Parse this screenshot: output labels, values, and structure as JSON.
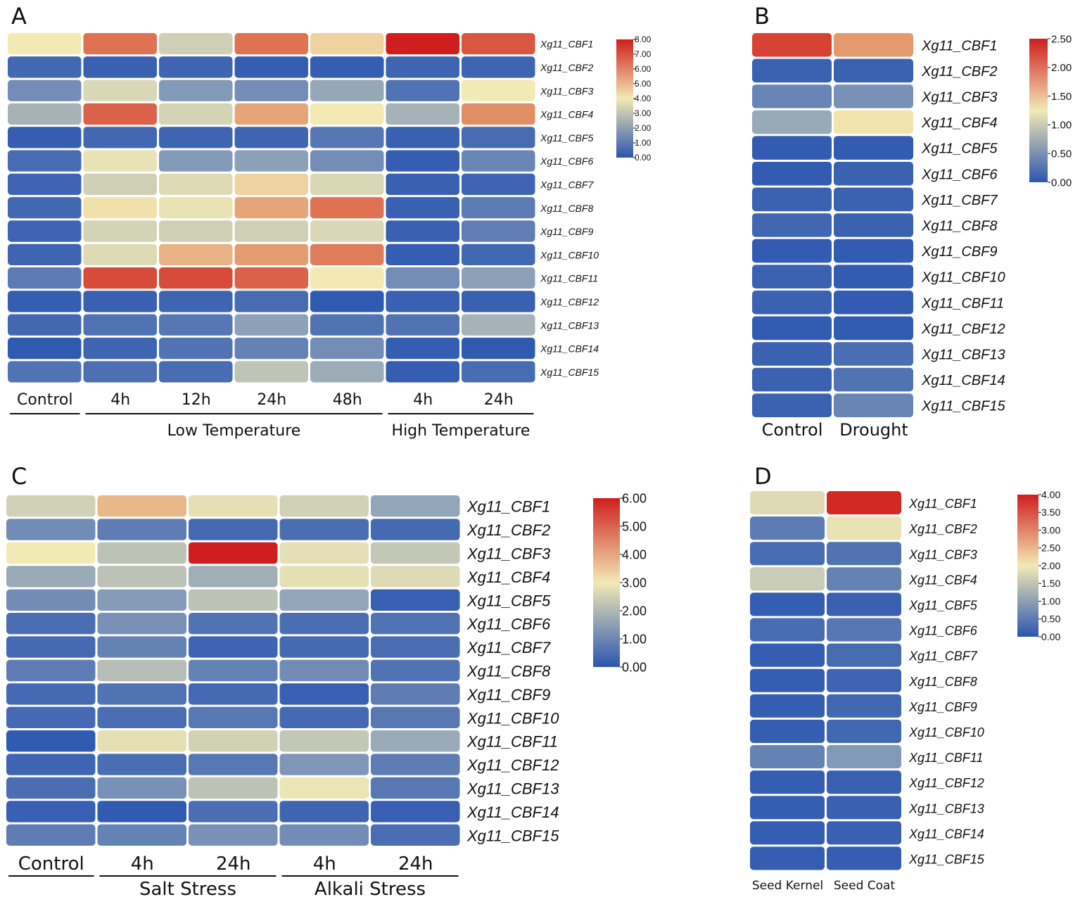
{
  "chart_data": [
    {
      "type": "heatmap",
      "panel": "A",
      "columns": [
        "Control",
        "4h",
        "12h",
        "24h",
        "48h",
        "4h",
        "24h"
      ],
      "groups": [
        {
          "label": "Low Temperature",
          "columns": [
            1,
            2,
            3,
            4
          ]
        },
        {
          "label": "High Temperature",
          "columns": [
            5,
            6
          ]
        }
      ],
      "rows": [
        "Xg11_CBF1",
        "Xg11_CBF2",
        "Xg11_CBF3",
        "Xg11_CBF4",
        "Xg11_CBF5",
        "Xg11_CBF6",
        "Xg11_CBF7",
        "Xg11_CBF8",
        "Xg11_CBF9",
        "Xg11_CBF10",
        "Xg11_CBF11",
        "Xg11_CBF12",
        "Xg11_CBF13",
        "Xg11_CBF14",
        "Xg11_CBF15"
      ],
      "values": [
        [
          4.0,
          6.5,
          3.3,
          6.5,
          4.5,
          8.0,
          7.0
        ],
        [
          0.5,
          0.3,
          0.4,
          0.2,
          0.2,
          0.4,
          0.4
        ],
        [
          1.5,
          3.5,
          1.8,
          1.5,
          2.2,
          0.8,
          4.0
        ],
        [
          2.5,
          6.8,
          3.4,
          5.5,
          4.0,
          2.5,
          6.0
        ],
        [
          0.2,
          0.5,
          0.4,
          0.4,
          0.9,
          0.3,
          0.6
        ],
        [
          0.6,
          3.8,
          1.8,
          2.0,
          1.5,
          0.2,
          1.3
        ],
        [
          0.4,
          3.3,
          3.6,
          4.5,
          3.5,
          0.3,
          0.4
        ],
        [
          0.5,
          4.2,
          3.8,
          5.5,
          6.5,
          0.3,
          1.0
        ],
        [
          0.4,
          3.4,
          3.3,
          3.3,
          3.5,
          0.3,
          1.1
        ],
        [
          0.4,
          3.6,
          5.2,
          5.7,
          6.3,
          0.2,
          0.5
        ],
        [
          1.0,
          7.2,
          7.2,
          6.8,
          4.0,
          1.5,
          2.0
        ],
        [
          0.2,
          0.3,
          0.4,
          0.6,
          0.1,
          0.3,
          0.3
        ],
        [
          0.5,
          0.8,
          0.9,
          2.0,
          0.8,
          0.8,
          2.5
        ],
        [
          0.1,
          0.4,
          0.8,
          1.2,
          1.5,
          0.2,
          0.1
        ],
        [
          0.8,
          0.7,
          0.6,
          3.0,
          2.3,
          0.2,
          0.6
        ]
      ],
      "colorbar": {
        "min": 0,
        "max": 8,
        "ticks": [
          "8.00",
          "7.00",
          "6.00",
          "5.00",
          "4.00",
          "3.00",
          "2.00",
          "1.00",
          "0.00"
        ]
      }
    },
    {
      "type": "heatmap",
      "panel": "B",
      "columns": [
        "Control",
        "Drought"
      ],
      "groups": [],
      "rows": [
        "Xg11_CBF1",
        "Xg11_CBF2",
        "Xg11_CBF3",
        "Xg11_CBF4",
        "Xg11_CBF5",
        "Xg11_CBF6",
        "Xg11_CBF7",
        "Xg11_CBF8",
        "Xg11_CBF9",
        "Xg11_CBF10",
        "Xg11_CBF11",
        "Xg11_CBF12",
        "Xg11_CBF13",
        "Xg11_CBF14",
        "Xg11_CBF15"
      ],
      "values": [
        [
          2.3,
          1.8
        ],
        [
          0.1,
          0.1
        ],
        [
          0.4,
          0.5
        ],
        [
          0.7,
          1.3
        ],
        [
          0.05,
          0.05
        ],
        [
          0.05,
          0.1
        ],
        [
          0.1,
          0.1
        ],
        [
          0.15,
          0.1
        ],
        [
          0.05,
          0.05
        ],
        [
          0.1,
          0.05
        ],
        [
          0.1,
          0.05
        ],
        [
          0.05,
          0.05
        ],
        [
          0.1,
          0.2
        ],
        [
          0.1,
          0.25
        ],
        [
          0.1,
          0.4
        ]
      ],
      "colorbar": {
        "min": 0,
        "max": 2.5,
        "ticks": [
          "2.50",
          "2.00",
          "1.50",
          "1.00",
          "0.50",
          "0.00"
        ]
      }
    },
    {
      "type": "heatmap",
      "panel": "C",
      "columns": [
        "Control",
        "4h",
        "24h",
        "4h",
        "24h"
      ],
      "groups": [
        {
          "label": "Salt Stress",
          "columns": [
            1,
            2
          ]
        },
        {
          "label": "Alkali Stress",
          "columns": [
            3,
            4
          ]
        }
      ],
      "rows": [
        "Xg11_CBF1",
        "Xg11_CBF2",
        "Xg11_CBF3",
        "Xg11_CBF4",
        "Xg11_CBF5",
        "Xg11_CBF6",
        "Xg11_CBF7",
        "Xg11_CBF8",
        "Xg11_CBF9",
        "Xg11_CBF10",
        "Xg11_CBF11",
        "Xg11_CBF12",
        "Xg11_CBF13",
        "Xg11_CBF14",
        "Xg11_CBF15"
      ],
      "values": [
        [
          2.5,
          3.8,
          2.8,
          2.5,
          1.6
        ],
        [
          1.1,
          0.8,
          0.4,
          0.5,
          0.4
        ],
        [
          3.0,
          2.2,
          6.0,
          2.8,
          2.3
        ],
        [
          1.7,
          2.2,
          1.8,
          2.8,
          2.7
        ],
        [
          1.1,
          1.4,
          2.2,
          1.6,
          0.2
        ],
        [
          0.5,
          1.2,
          0.6,
          0.5,
          0.6
        ],
        [
          0.4,
          0.9,
          0.3,
          0.4,
          0.5
        ],
        [
          0.8,
          2.1,
          0.9,
          1.1,
          0.6
        ],
        [
          0.4,
          0.6,
          0.4,
          0.2,
          0.8
        ],
        [
          0.4,
          0.5,
          0.7,
          0.4,
          0.7
        ],
        [
          0.1,
          2.8,
          2.5,
          2.3,
          1.7
        ],
        [
          0.3,
          0.5,
          0.7,
          1.3,
          0.8
        ],
        [
          0.5,
          1.2,
          2.2,
          2.9,
          0.7
        ],
        [
          0.2,
          0.1,
          0.5,
          0.3,
          0.2
        ],
        [
          0.8,
          0.9,
          1.2,
          1.1,
          0.5
        ]
      ],
      "colorbar": {
        "min": 0,
        "max": 6,
        "ticks": [
          "6.00",
          "5.00",
          "4.00",
          "3.00",
          "2.00",
          "1.00",
          "0.00"
        ]
      }
    },
    {
      "type": "heatmap",
      "panel": "D",
      "columns": [
        "Seed Kernel",
        "Seed Coat"
      ],
      "groups": [],
      "rows": [
        "Xg11_CBF1",
        "Xg11_CBF2",
        "Xg11_CBF3",
        "Xg11_CBF4",
        "Xg11_CBF5",
        "Xg11_CBF6",
        "Xg11_CBF7",
        "Xg11_CBF8",
        "Xg11_CBF9",
        "Xg11_CBF10",
        "Xg11_CBF11",
        "Xg11_CBF12",
        "Xg11_CBF13",
        "Xg11_CBF14",
        "Xg11_CBF15"
      ],
      "values": [
        [
          1.8,
          3.9
        ],
        [
          0.5,
          1.9
        ],
        [
          0.3,
          0.4
        ],
        [
          1.6,
          0.6
        ],
        [
          0.1,
          0.15
        ],
        [
          0.3,
          0.45
        ],
        [
          0.1,
          0.3
        ],
        [
          0.1,
          0.2
        ],
        [
          0.1,
          0.25
        ],
        [
          0.1,
          0.25
        ],
        [
          0.6,
          0.9
        ],
        [
          0.1,
          0.15
        ],
        [
          0.1,
          0.15
        ],
        [
          0.1,
          0.15
        ],
        [
          0.1,
          0.1
        ]
      ],
      "colorbar": {
        "min": 0,
        "max": 4,
        "ticks": [
          "4.00",
          "3.50",
          "3.00",
          "2.50",
          "2.00",
          "1.50",
          "1.00",
          "0.50",
          "0.00"
        ]
      }
    }
  ]
}
